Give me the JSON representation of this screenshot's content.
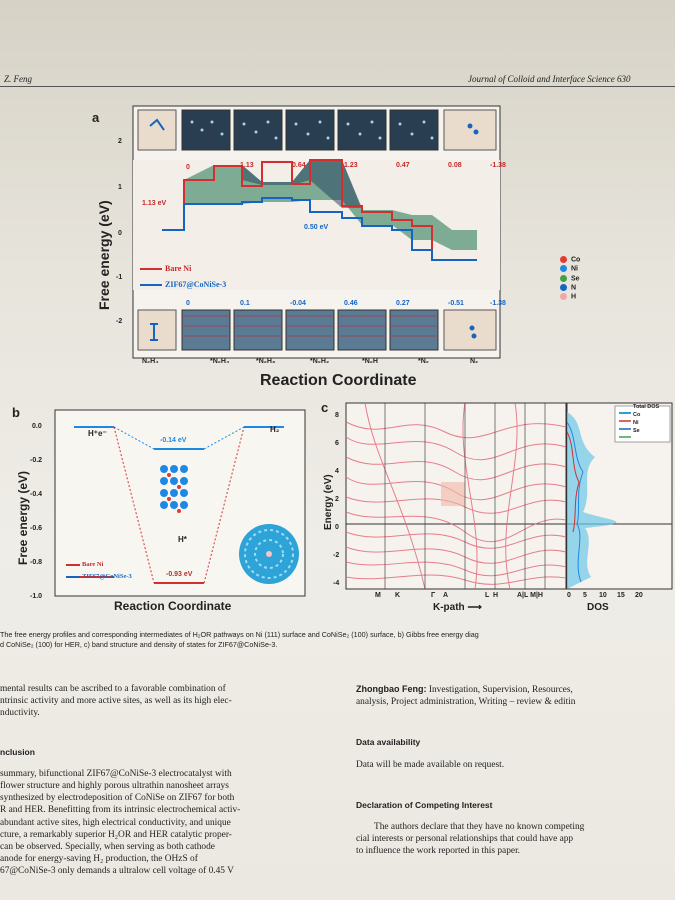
{
  "header": {
    "left": "Z. Feng",
    "right": "Journal of Colloid and Interface Science 630"
  },
  "panel_a": {
    "letter": "a",
    "ylabel": "Free energy (eV)",
    "xlabel": "Reaction Coordinate",
    "yticks": [
      "2",
      "1",
      "0",
      "-1",
      "-2"
    ],
    "xticks": [
      "N₂H₄",
      "*N₂H₄",
      "*N₂H₃",
      "*N₂H₂",
      "*N₂H",
      "*N₂",
      "N₂"
    ],
    "legend": [
      "Bare Ni",
      "ZIF67@CoNiSe-3"
    ],
    "ni_steps": [
      "0",
      "1.13",
      "0.64",
      "1.23",
      "0.47",
      "0.08",
      "-1.38"
    ],
    "zif_steps": [
      "0",
      "0.1",
      "-0.04",
      "0.46",
      "0.27",
      "-0.51",
      "-1.38"
    ],
    "ni_barrier": "1.13 eV",
    "zif_barrier": "0.50 eV",
    "atom_legend": [
      "Co",
      "Ni",
      "Se",
      "N",
      "H"
    ],
    "atom_colors": [
      "#e53935",
      "#1e88e5",
      "#43a047",
      "#1565c0",
      "#f4a6a6"
    ]
  },
  "panel_b": {
    "letter": "b",
    "ylabel": "Free energy (eV)",
    "xlabel": "Reaction Coordinate",
    "yticks": [
      "0.0",
      "-0.2",
      "-0.4",
      "-0.6",
      "-0.8",
      "-1.0"
    ],
    "left_label": "H⁺e⁻",
    "right_label": "H₂",
    "mid_label": "H*",
    "blue_value": "-0.14 eV",
    "red_value": "-0.93 eV",
    "legend": [
      "Bare Ni",
      "ZIF67@CoNiSe-3"
    ]
  },
  "panel_c": {
    "letter": "c",
    "ylabel": "Energy (eV)",
    "yticks": [
      "8",
      "6",
      "4",
      "2",
      "0",
      "-2",
      "-4"
    ],
    "kpath_label": "K-path",
    "kticks": [
      "M",
      "K",
      "Γ",
      "A",
      "L",
      "H",
      "A|L M|H"
    ],
    "dos_label": "DOS",
    "dos_ticks": [
      "0",
      "5",
      "10",
      "15",
      "20"
    ],
    "legend": [
      "Total DOS",
      "Co",
      "Ni",
      "Se"
    ]
  },
  "caption": {
    "line1": "The free energy profiles and corresponding intermediates of H₂OR pathways on Ni (111) surface and CoNiSe₂ (100) surface, b) Gibbs free energy diag",
    "line2": "d CoNiSe₂ (100) for HER, c) band structure and density of states for ZIF67@CoNiSe-3."
  },
  "left_column": {
    "intro": [
      "mental results can be ascribed to a favorable combination of",
      "ntrinsic activity and more active sites, as well as its high elec-",
      "nductivity."
    ],
    "section_title": "nclusion",
    "body": [
      "summary, bifunctional ZIF67@CoNiSe-3 electrocatalyst with",
      "flower structure and highly porous ultrathin nanosheet arrays",
      "synthesized by electrodeposition of CoNiSe on ZIF67 for both",
      "R and HER. Benefitting from its intrinsic electrochemical activ-",
      "high electrical conductivity, and unique",
      "abundant active sites, high electrical conductivity, and unique",
      "cture, a remarkably superior H₂OR and HER catalytic proper-",
      "can be observed. Specially, when serving as both cathode",
      "anode for energy-saving H₂ production, the OHzS of",
      "67@CoNiSe-3 only demands a ultralow cell voltage of 0.45 V"
    ]
  },
  "right_column": {
    "credit_name": "Zhongbao Feng:",
    "credit_text1": " Investigation, Supervision, Resources,",
    "credit_text2": "analysis, Project administration, Writing – review & editin",
    "data_title": "Data availability",
    "data_text": "Data will be made available on request.",
    "competing_title": "Declaration of Competing Interest",
    "competing_text": [
      "The authors declare that they have no known competing",
      "cial interests or personal relationships that could have app",
      "to influence the work reported in this paper."
    ]
  }
}
